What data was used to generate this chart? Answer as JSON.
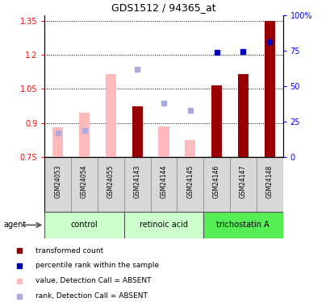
{
  "title": "GDS1512 / 94365_at",
  "samples": [
    "GSM24053",
    "GSM24054",
    "GSM24055",
    "GSM24143",
    "GSM24144",
    "GSM24145",
    "GSM24146",
    "GSM24147",
    "GSM24148"
  ],
  "groups": [
    {
      "label": "control",
      "indices": [
        0,
        1,
        2
      ]
    },
    {
      "label": "retinoic acid",
      "indices": [
        3,
        4,
        5
      ]
    },
    {
      "label": "trichostatin A",
      "indices": [
        6,
        7,
        8
      ]
    }
  ],
  "group_colors": [
    "#ccffcc",
    "#ccffcc",
    "#55ee55"
  ],
  "bar_values": [
    null,
    null,
    null,
    0.975,
    null,
    null,
    1.065,
    1.115,
    1.348
  ],
  "bar_absent": [
    0.882,
    0.945,
    1.115,
    null,
    0.885,
    0.825,
    null,
    null,
    null
  ],
  "rank_pct": [
    null,
    null,
    null,
    null,
    null,
    null,
    74.0,
    74.5,
    81.0
  ],
  "rank_absent_pct": [
    17.0,
    18.5,
    null,
    62.0,
    38.0,
    33.0,
    null,
    null,
    null
  ],
  "ylim": [
    0.75,
    1.375
  ],
  "yticks_left": [
    0.75,
    0.9,
    1.05,
    1.2,
    1.35
  ],
  "yticks_right": [
    0,
    25,
    50,
    75,
    100
  ],
  "bar_color": "#990000",
  "bar_absent_color": "#ffbbbb",
  "rank_color": "#0000bb",
  "rank_absent_color": "#aaaadd",
  "legend_items": [
    {
      "label": "transformed count",
      "color": "#990000"
    },
    {
      "label": "percentile rank within the sample",
      "color": "#0000bb"
    },
    {
      "label": "value, Detection Call = ABSENT",
      "color": "#ffbbbb"
    },
    {
      "label": "rank, Detection Call = ABSENT",
      "color": "#aaaadd"
    }
  ],
  "agent_label": "agent",
  "bar_width": 0.4
}
